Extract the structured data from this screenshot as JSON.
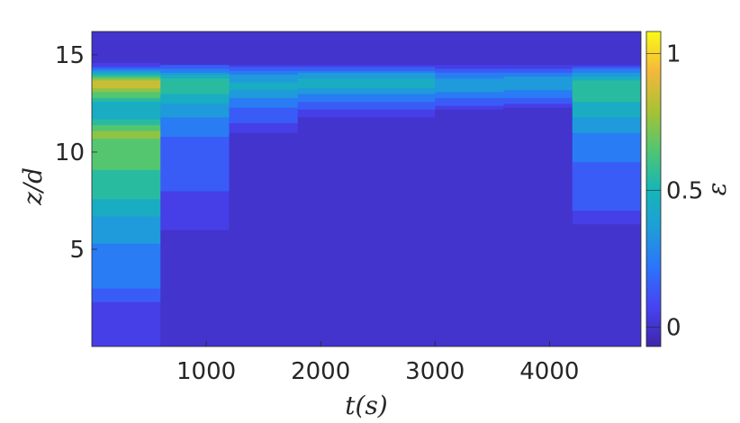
{
  "chart_data": {
    "type": "heatmap",
    "title": "",
    "xlabel": "t(s)",
    "ylabel": "z/d",
    "colorbar_label": "ε",
    "xlim": [
      0,
      4800
    ],
    "ylim": [
      0,
      16.2
    ],
    "clim": [
      -0.07,
      1.08
    ],
    "x_ticks": [
      1000,
      2000,
      3000,
      4000
    ],
    "x_tick_labels": [
      "1000",
      "2000",
      "3000",
      "4000"
    ],
    "y_ticks": [
      5,
      10,
      15
    ],
    "y_tick_labels": [
      "5",
      "10",
      "15"
    ],
    "colorbar_ticks": [
      0,
      0.5,
      1
    ],
    "colorbar_tick_labels": [
      "0",
      "0.5",
      "1"
    ],
    "colormap": "parula",
    "colormap_stops": [
      "#3e26a8",
      "#4743f2",
      "#2c73fb",
      "#1e9dd8",
      "#16b6b6",
      "#52c670",
      "#a9c234",
      "#f5b83b",
      "#f9fb15"
    ],
    "contour_levels": [
      0.1,
      0.2,
      0.3,
      0.4,
      0.5,
      0.6,
      0.7,
      0.8,
      0.9,
      1.0
    ],
    "background_value": 0,
    "segments": [
      {
        "t_start": 0,
        "t_end": 600,
        "profile": [
          [
            0,
            0.05
          ],
          [
            2,
            0.05
          ],
          [
            3,
            0.2
          ],
          [
            5,
            0.28
          ],
          [
            6.5,
            0.38
          ],
          [
            8,
            0.55
          ],
          [
            9.5,
            0.62
          ],
          [
            11,
            0.72
          ],
          [
            12,
            0.4
          ],
          [
            12.6,
            0.5
          ],
          [
            13.2,
            0.75
          ],
          [
            13.6,
            0.92
          ],
          [
            14.0,
            0.55
          ],
          [
            14.4,
            0.1
          ],
          [
            14.8,
            0.0
          ],
          [
            16.2,
            0.0
          ]
        ]
      },
      {
        "t_start": 600,
        "t_end": 1200,
        "profile": [
          [
            0,
            0.0
          ],
          [
            5,
            0.0
          ],
          [
            6,
            0.05
          ],
          [
            8,
            0.1
          ],
          [
            10,
            0.15
          ],
          [
            11.5,
            0.25
          ],
          [
            12.5,
            0.4
          ],
          [
            13.2,
            0.55
          ],
          [
            13.8,
            0.5
          ],
          [
            14.3,
            0.2
          ],
          [
            14.6,
            0.0
          ],
          [
            16.2,
            0.0
          ]
        ]
      },
      {
        "t_start": 1200,
        "t_end": 1800,
        "profile": [
          [
            0,
            0.0
          ],
          [
            10,
            0.0
          ],
          [
            11,
            0.05
          ],
          [
            12,
            0.15
          ],
          [
            12.8,
            0.3
          ],
          [
            13.4,
            0.45
          ],
          [
            14.0,
            0.3
          ],
          [
            14.4,
            0.1
          ],
          [
            14.6,
            0.0
          ],
          [
            16.2,
            0.0
          ]
        ]
      },
      {
        "t_start": 1800,
        "t_end": 2400,
        "profile": [
          [
            0,
            0.0
          ],
          [
            11.5,
            0.0
          ],
          [
            12.2,
            0.1
          ],
          [
            13.0,
            0.3
          ],
          [
            13.5,
            0.45
          ],
          [
            14.0,
            0.35
          ],
          [
            14.4,
            0.1
          ],
          [
            14.6,
            0.0
          ],
          [
            16.2,
            0.0
          ]
        ]
      },
      {
        "t_start": 2400,
        "t_end": 3000,
        "profile": [
          [
            0,
            0.0
          ],
          [
            11.5,
            0.0
          ],
          [
            12.2,
            0.1
          ],
          [
            13.0,
            0.3
          ],
          [
            13.5,
            0.45
          ],
          [
            14.0,
            0.35
          ],
          [
            14.4,
            0.1
          ],
          [
            14.6,
            0.0
          ],
          [
            16.2,
            0.0
          ]
        ]
      },
      {
        "t_start": 3000,
        "t_end": 3600,
        "profile": [
          [
            0,
            0.0
          ],
          [
            12.0,
            0.0
          ],
          [
            12.6,
            0.15
          ],
          [
            13.3,
            0.35
          ],
          [
            13.8,
            0.3
          ],
          [
            14.3,
            0.1
          ],
          [
            14.6,
            0.0
          ],
          [
            16.2,
            0.0
          ]
        ]
      },
      {
        "t_start": 3600,
        "t_end": 4200,
        "profile": [
          [
            0,
            0.0
          ],
          [
            12.2,
            0.0
          ],
          [
            12.8,
            0.2
          ],
          [
            13.4,
            0.35
          ],
          [
            13.9,
            0.3
          ],
          [
            14.3,
            0.1
          ],
          [
            14.6,
            0.0
          ],
          [
            16.2,
            0.0
          ]
        ]
      },
      {
        "t_start": 4200,
        "t_end": 4800,
        "profile": [
          [
            0,
            0.0
          ],
          [
            5.5,
            0.0
          ],
          [
            7,
            0.1
          ],
          [
            9.5,
            0.2
          ],
          [
            11,
            0.3
          ],
          [
            11.8,
            0.4
          ],
          [
            12.6,
            0.5
          ],
          [
            13.2,
            0.58
          ],
          [
            13.7,
            0.52
          ],
          [
            14.2,
            0.25
          ],
          [
            14.6,
            0.0
          ],
          [
            16.2,
            0.0
          ]
        ]
      }
    ]
  }
}
